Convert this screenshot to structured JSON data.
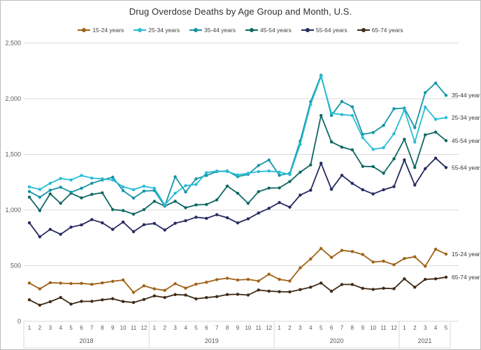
{
  "title": "Drug Overdose Deaths by Age Group and Month, U.S.",
  "colors": {
    "grid": "#d9d9d9",
    "axis_text": "#595959",
    "title_text": "#303030",
    "border": "#bdbdbd"
  },
  "chart_data": {
    "type": "line",
    "title": "Drug Overdose Deaths by Age Group and Month, U.S.",
    "legend_position": "top",
    "grid": "horizontal",
    "y_axis": {
      "min": 0,
      "max": 2500,
      "tick_step": 500,
      "ticks": [
        "0",
        "500",
        "1,000",
        "1,500",
        "2,000",
        "2,500"
      ]
    },
    "x_axis": {
      "years": [
        {
          "label": "2018",
          "month_labels": [
            "1",
            "2",
            "3",
            "4",
            "5",
            "6",
            "7",
            "8",
            "9",
            "10",
            "11",
            "12"
          ]
        },
        {
          "label": "2019",
          "month_labels": [
            "1",
            "2",
            "3",
            "4",
            "5",
            "6",
            "7",
            "8",
            "9",
            "10",
            "11",
            "12"
          ]
        },
        {
          "label": "2020",
          "month_labels": [
            "1",
            "2",
            "3",
            "4",
            "5",
            "6",
            "7",
            "8",
            "9",
            "10",
            "11",
            "12"
          ]
        },
        {
          "label": "2021",
          "month_labels": [
            "1",
            "2",
            "3",
            "4",
            "5"
          ]
        }
      ]
    },
    "series": [
      {
        "name": "15-24 years",
        "color": "#A06318",
        "values": [
          344,
          291,
          347,
          343,
          339,
          341,
          332,
          345,
          359,
          371,
          260,
          319,
          292,
          278,
          338,
          298,
          334,
          351,
          375,
          387,
          371,
          377,
          362,
          423,
          377,
          362,
          480,
          560,
          654,
          574,
          637,
          627,
          600,
          533,
          540,
          508,
          564,
          580,
          495,
          648,
          604
        ]
      },
      {
        "name": "25-34 years",
        "color": "#27BDD6",
        "values": [
          1208,
          1185,
          1240,
          1283,
          1270,
          1310,
          1287,
          1280,
          1270,
          1208,
          1183,
          1214,
          1195,
          1046,
          1150,
          1218,
          1230,
          1335,
          1350,
          1345,
          1315,
          1330,
          1345,
          1350,
          1340,
          1319,
          1590,
          1948,
          2200,
          1870,
          1857,
          1849,
          1650,
          1545,
          1560,
          1685,
          1900,
          1610,
          1925,
          1815,
          1830
        ]
      },
      {
        "name": "35-44 years",
        "color": "#1695A6",
        "values": [
          1166,
          1115,
          1178,
          1205,
          1160,
          1195,
          1240,
          1270,
          1295,
          1174,
          1107,
          1170,
          1175,
          1036,
          1298,
          1162,
          1280,
          1310,
          1345,
          1350,
          1300,
          1320,
          1400,
          1449,
          1312,
          1330,
          1620,
          1973,
          2210,
          1850,
          1975,
          1927,
          1680,
          1696,
          1760,
          1910,
          1915,
          1740,
          2055,
          2140,
          2030
        ]
      },
      {
        "name": "45-54 years",
        "color": "#0F6862",
        "values": [
          1115,
          995,
          1145,
          1060,
          1150,
          1109,
          1140,
          1155,
          1004,
          995,
          963,
          1004,
          1078,
          1035,
          1078,
          1021,
          1046,
          1050,
          1091,
          1215,
          1150,
          1060,
          1165,
          1197,
          1199,
          1256,
          1340,
          1405,
          1850,
          1612,
          1565,
          1540,
          1392,
          1390,
          1330,
          1460,
          1635,
          1382,
          1675,
          1700,
          1623
        ]
      },
      {
        "name": "55-64 years",
        "color": "#272B60",
        "values": [
          885,
          759,
          826,
          782,
          846,
          866,
          914,
          885,
          826,
          892,
          805,
          868,
          879,
          820,
          881,
          904,
          935,
          925,
          958,
          930,
          884,
          921,
          973,
          1015,
          1067,
          1025,
          1134,
          1178,
          1420,
          1186,
          1312,
          1239,
          1182,
          1144,
          1182,
          1210,
          1450,
          1224,
          1371,
          1466,
          1382
        ]
      },
      {
        "name": "65-74 years",
        "color": "#3F2B17",
        "values": [
          193,
          145,
          176,
          214,
          155,
          179,
          179,
          193,
          203,
          178,
          169,
          196,
          228,
          214,
          240,
          236,
          202,
          213,
          222,
          240,
          243,
          236,
          281,
          271,
          266,
          264,
          285,
          306,
          344,
          270,
          331,
          331,
          296,
          287,
          297,
          293,
          382,
          306,
          377,
          382,
          396
        ]
      }
    ]
  }
}
